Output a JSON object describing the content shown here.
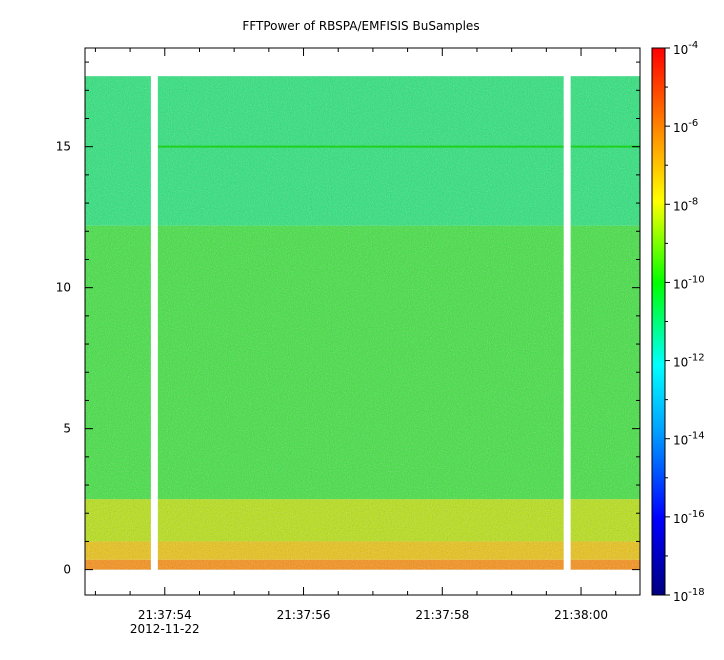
{
  "chart_data": {
    "type": "heatmap",
    "title": "FFTPower of RBSPA/EMFISIS  BuSamples",
    "xlabel": "",
    "ylabel": "",
    "x_ticks": [
      "21:37:54",
      "21:37:56",
      "21:37:58",
      "21:38:00"
    ],
    "x_date_label": "2012-11-22",
    "x_range_seconds": [
      52.85,
      60.85
    ],
    "y_ticks": [
      0,
      5,
      10,
      15
    ],
    "ylim": [
      -0.9,
      18.5
    ],
    "data_y_extent": [
      0,
      17.5
    ],
    "data_gaps_seconds": [
      [
        53.8,
        53.9
      ],
      [
        59.75,
        59.85
      ]
    ],
    "colorbar": {
      "scale": "log",
      "range": [
        1e-18,
        0.0001
      ],
      "tick_labels": [
        {
          "base": "10",
          "exp": "-4"
        },
        {
          "base": "10",
          "exp": "-6"
        },
        {
          "base": "10",
          "exp": "-8"
        },
        {
          "base": "10",
          "exp": "-10"
        },
        {
          "base": "10",
          "exp": "-12"
        },
        {
          "base": "10",
          "exp": "-14"
        },
        {
          "base": "10",
          "exp": "-16"
        },
        {
          "base": "10",
          "exp": "-18"
        }
      ],
      "colors": [
        "#000080",
        "#0000ff",
        "#00ffff",
        "#00ff00",
        "#ffff00",
        "#ff8000",
        "#ff0000"
      ]
    },
    "bands": [
      {
        "y_from": 0,
        "y_to": 0.35,
        "level": "1e-8",
        "color": "#ff8a00"
      },
      {
        "y_from": 0.35,
        "y_to": 1.0,
        "level": "1e-9",
        "color": "#f0c400"
      },
      {
        "y_from": 1.0,
        "y_to": 2.5,
        "level": "1e-10",
        "color": "#b8e600"
      },
      {
        "y_from": 2.5,
        "y_to": 12.2,
        "level": "1e-11",
        "color": "#33e633"
      },
      {
        "y_from": 12.2,
        "y_to": 17.5,
        "level": "1e-12",
        "color": "#1ae873"
      }
    ],
    "line_feature": {
      "y": 15.0,
      "level": "1e-11"
    },
    "grid": false,
    "legend": "colorbar-right"
  }
}
